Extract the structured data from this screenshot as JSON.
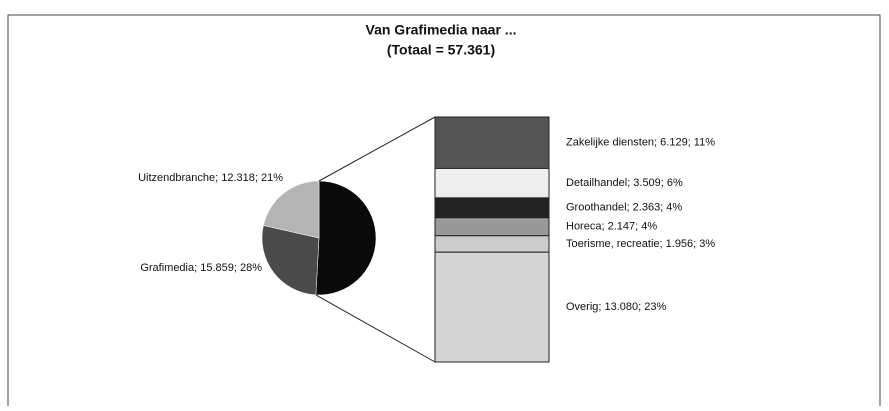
{
  "chart_data": {
    "type": "bar-of-pie",
    "title": "Van Grafimedia naar ...",
    "subtitle": "(Totaal = 57.361)",
    "pie": {
      "values": [
        29184,
        15859,
        12318
      ],
      "value_labels": [
        null,
        "Grafimedia; 15.859; 28%",
        "Uitzendbranche; 12.318; 21%"
      ],
      "colors": [
        "#0a0a0a",
        "#4a4a4a",
        "#b4b4b4"
      ]
    },
    "bar": {
      "values": [
        6129,
        3509,
        2363,
        2147,
        1956,
        13080
      ],
      "value_labels": [
        "Zakelijke diensten; 6.129; 11%",
        "Detailhandel; 3.509; 6%",
        "Groothandel; 2.363; 4%",
        "Horeca; 2.147; 4%",
        "Toerisme, recreatie; 1.956; 3%",
        "Overig; 13.080; 23%"
      ],
      "colors": [
        "#555555",
        "#eeeeee",
        "#222222",
        "#999999",
        "#cccccc",
        "#d4d4d4"
      ]
    }
  }
}
